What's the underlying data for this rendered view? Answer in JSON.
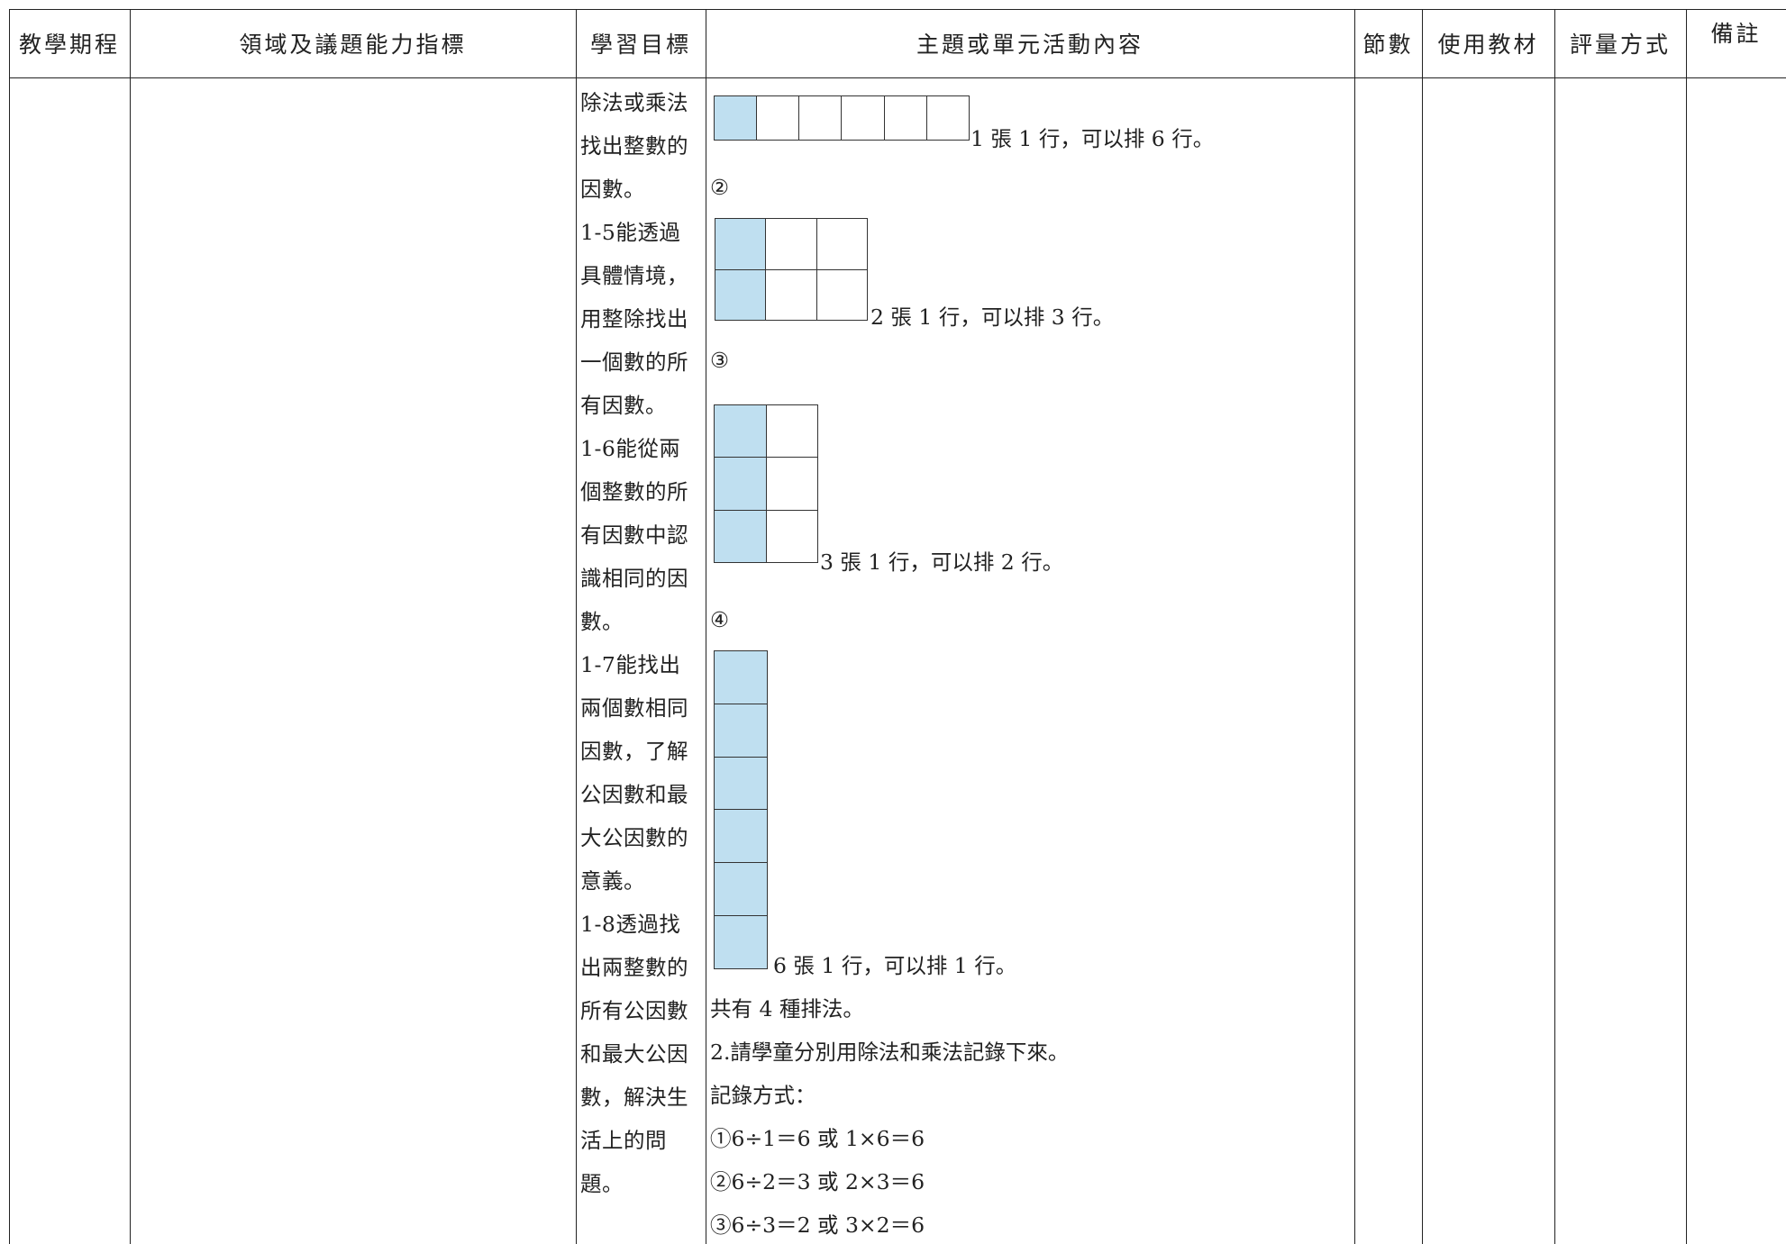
{
  "headers": {
    "period": "教學期程",
    "indicators": "領域及議題能力指標",
    "objectives": "學習目標",
    "activity": "主題或單元活動內容",
    "sessions": "節數",
    "materials": "使用教材",
    "assessment": "評量方式",
    "notes": "備註"
  },
  "objective_lines": [
    "除法或乘法",
    "找出整數的",
    "因數。",
    "1-5能透過",
    "具體情境，",
    "用整除找出",
    "一個數的所",
    "有因數。",
    "1-6能從兩",
    "個整數的所",
    "有因數中認",
    "識相同的因",
    "數。",
    "1-7能找出",
    "兩個數相同",
    "因數，了解",
    "公因數和最",
    "大公因數的",
    "意義。",
    "1-8透過找",
    "出兩整數的",
    "所有公因數",
    "和最大公因",
    "數，解決生",
    "活上的問",
    "題。"
  ],
  "activity": {
    "arrangements": [
      {
        "marker": "",
        "caption": "1 張 1 行，可以排 6 行。",
        "cols": 6,
        "rows": 1
      },
      {
        "marker": "②",
        "caption": "2 張 1 行，可以排 3 行。",
        "cols": 3,
        "rows": 2
      },
      {
        "marker": "③",
        "caption": "3 張 1 行，可以排 2 行。",
        "cols": 2,
        "rows": 3
      },
      {
        "marker": "④",
        "caption": "6 張 1 行，可以排 1 行。",
        "cols": 1,
        "rows": 6
      }
    ],
    "summary": "共有 4 種排法。",
    "step2": "2.請學童分別用除法和乘法記錄下來。",
    "record_label": "記錄方式：",
    "records": [
      "①6÷1＝6 或 1×6＝6",
      "②6÷2＝3 或 2×3＝6",
      "③6÷3＝2 或 3×2＝6"
    ],
    "grid_fill_color": "#bfdff0"
  }
}
